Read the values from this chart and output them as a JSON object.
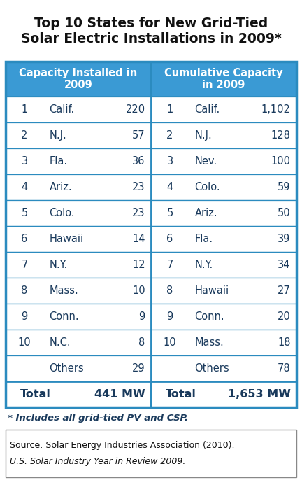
{
  "title": "Top 10 States for New Grid-Tied\nSolar Electric Installations in 2009*",
  "header_bg": "#3a9ad4",
  "header_text_color": "#ffffff",
  "border_color": "#2b8bbf",
  "text_color": "#1a3a5c",
  "left_header": "Capacity Installed in\n2009",
  "right_header": "Cumulative Capacity\nin 2009",
  "left_rows": [
    {
      "rank": "1",
      "state": "Calif.",
      "value": "220"
    },
    {
      "rank": "2",
      "state": "N.J.",
      "value": "57"
    },
    {
      "rank": "3",
      "state": "Fla.",
      "value": "36"
    },
    {
      "rank": "4",
      "state": "Ariz.",
      "value": "23"
    },
    {
      "rank": "5",
      "state": "Colo.",
      "value": "23"
    },
    {
      "rank": "6",
      "state": "Hawaii",
      "value": "14"
    },
    {
      "rank": "7",
      "state": "N.Y.",
      "value": "12"
    },
    {
      "rank": "8",
      "state": "Mass.",
      "value": "10"
    },
    {
      "rank": "9",
      "state": "Conn.",
      "value": "9"
    },
    {
      "rank": "10",
      "state": "N.C.",
      "value": "8"
    },
    {
      "rank": "",
      "state": "Others",
      "value": "29"
    }
  ],
  "right_rows": [
    {
      "rank": "1",
      "state": "Calif.",
      "value": "1,102"
    },
    {
      "rank": "2",
      "state": "N.J.",
      "value": "128"
    },
    {
      "rank": "3",
      "state": "Nev.",
      "value": "100"
    },
    {
      "rank": "4",
      "state": "Colo.",
      "value": "59"
    },
    {
      "rank": "5",
      "state": "Ariz.",
      "value": "50"
    },
    {
      "rank": "6",
      "state": "Fla.",
      "value": "39"
    },
    {
      "rank": "7",
      "state": "N.Y.",
      "value": "34"
    },
    {
      "rank": "8",
      "state": "Hawaii",
      "value": "27"
    },
    {
      "rank": "9",
      "state": "Conn.",
      "value": "20"
    },
    {
      "rank": "10",
      "state": "Mass.",
      "value": "18"
    },
    {
      "rank": "",
      "state": "Others",
      "value": "78"
    }
  ],
  "left_total": "441 MW",
  "right_total": "1,653 MW",
  "footnote": "* Includes all grid-tied PV and CSP.",
  "source_line1": "Source: Solar Energy Industries Association (2010).",
  "source_line2": "U.S. Solar Industry Year in Review 2009.",
  "title_color": "#111111",
  "footnote_color": "#1a3a5c",
  "source_color": "#111111"
}
